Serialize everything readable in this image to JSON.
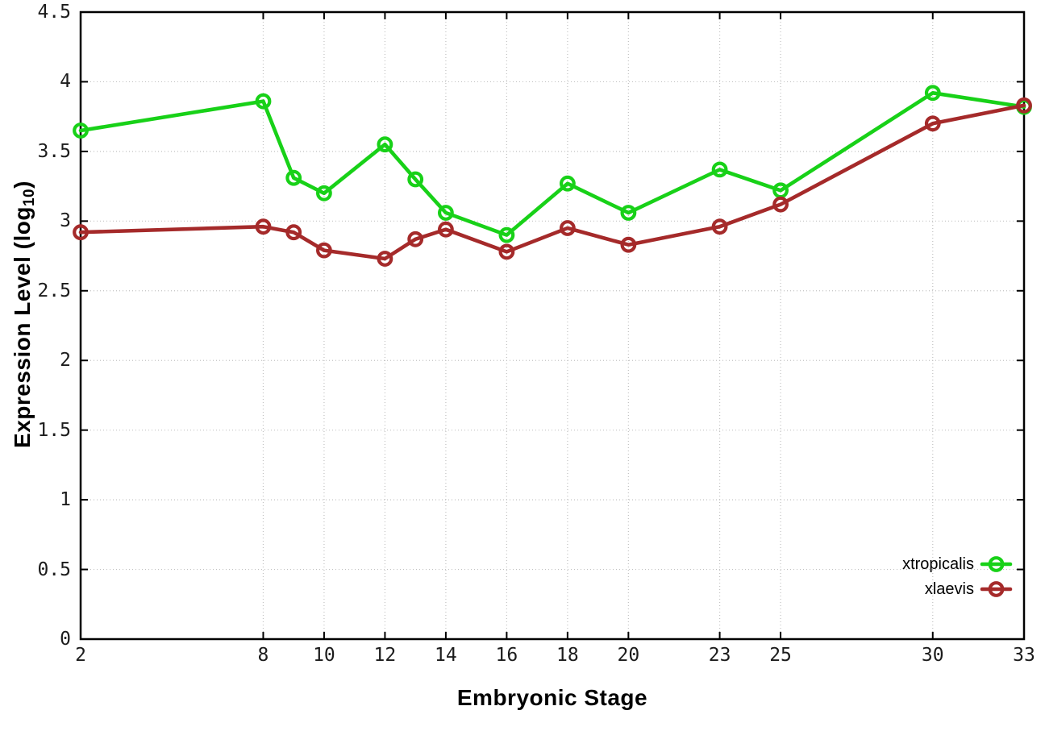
{
  "chart_data": {
    "type": "line",
    "title": "",
    "xlabel": "Embryonic Stage",
    "ylabel": "Expression Level (log10)",
    "ylabel_main": "Expression Level (log",
    "ylabel_sub": "10",
    "ylabel_close": ")",
    "xlim": [
      2,
      33
    ],
    "ylim": [
      0,
      4.5
    ],
    "x_ticks": [
      2,
      8,
      10,
      12,
      14,
      16,
      18,
      20,
      23,
      25,
      30,
      33
    ],
    "y_ticks": [
      0,
      0.5,
      1,
      1.5,
      2,
      2.5,
      3,
      3.5,
      4,
      4.5
    ],
    "grid": true,
    "legend_position": "inside-bottom-right",
    "x": [
      2,
      8,
      9,
      10,
      12,
      13,
      14,
      16,
      18,
      20,
      23,
      25,
      30,
      33
    ],
    "series": [
      {
        "name": "xtropicalis",
        "color": "#18d118",
        "values": [
          3.65,
          3.86,
          3.31,
          3.2,
          3.55,
          3.3,
          3.06,
          2.9,
          3.27,
          3.06,
          3.37,
          3.22,
          3.92,
          3.82
        ]
      },
      {
        "name": "xlaevis",
        "color": "#a52a2a",
        "values": [
          2.92,
          2.96,
          2.92,
          2.79,
          2.73,
          2.87,
          2.94,
          2.78,
          2.95,
          2.83,
          2.96,
          3.12,
          3.7,
          3.83
        ]
      }
    ],
    "style_colors": {
      "axis": "#000000",
      "grid": "#c2c2c2",
      "tick_text": "#1c1c1c"
    }
  }
}
